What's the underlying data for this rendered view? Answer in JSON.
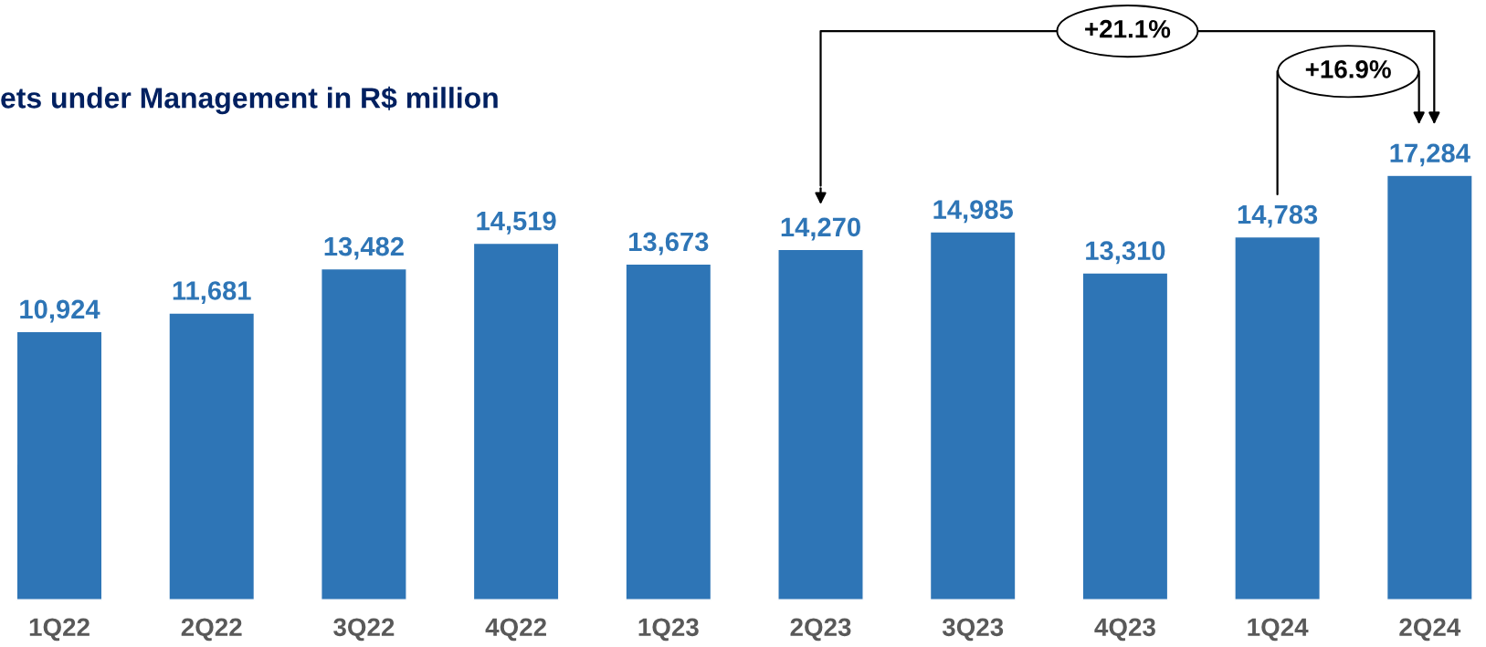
{
  "chart_data": {
    "type": "bar",
    "title": "ets under Management in R$ million",
    "categories": [
      "1Q22",
      "2Q22",
      "3Q22",
      "4Q22",
      "1Q23",
      "2Q23",
      "3Q23",
      "4Q23",
      "1Q24",
      "2Q24"
    ],
    "values": [
      10924,
      11681,
      13482,
      14519,
      13673,
      14270,
      14985,
      13310,
      14783,
      17284
    ],
    "value_labels": [
      "10,924",
      "11,681",
      "13,482",
      "14,519",
      "13,673",
      "14,270",
      "14,985",
      "13,310",
      "14,783",
      "17,284"
    ],
    "color": "#2e75b6",
    "annotations": [
      "+21.1%",
      "+16.9%"
    ],
    "grid": false,
    "legend": false
  }
}
